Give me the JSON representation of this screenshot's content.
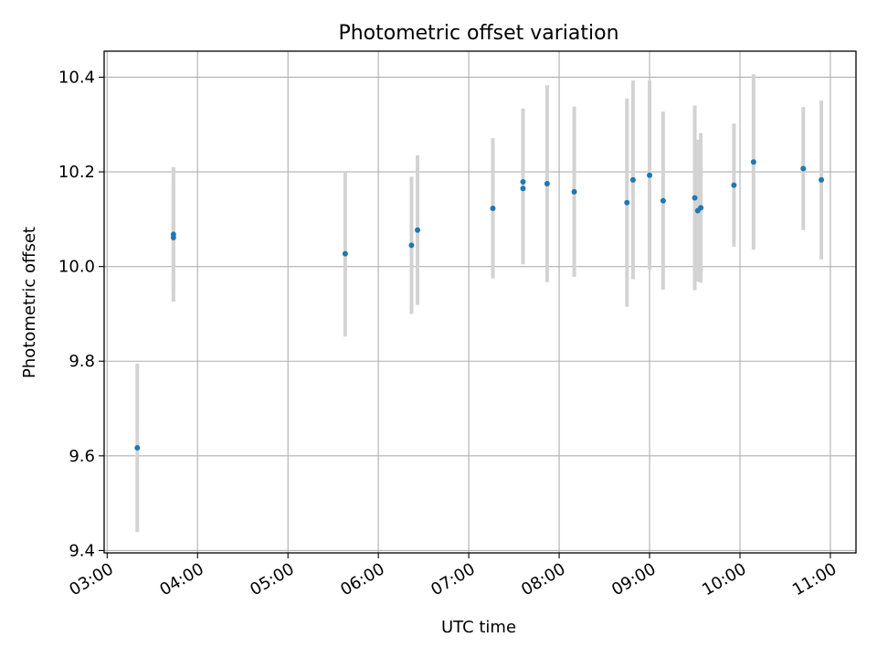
{
  "chart_data": {
    "type": "scatter",
    "title": "Photometric offset variation",
    "xlabel": "UTC time",
    "ylabel": "Photometric offset",
    "xlim": [
      "02:58",
      "11:17"
    ],
    "ylim": [
      9.395,
      10.455
    ],
    "x_ticks": [
      "03:00",
      "04:00",
      "05:00",
      "06:00",
      "07:00",
      "08:00",
      "09:00",
      "10:00",
      "11:00"
    ],
    "y_ticks": [
      9.4,
      9.6,
      9.8,
      10.0,
      10.2,
      10.4
    ],
    "y_tick_labels": [
      "9.4",
      "9.6",
      "9.8",
      "10.0",
      "10.2",
      "10.4"
    ],
    "grid": true,
    "colors": {
      "point": "#1f77b4",
      "errorbar": "#d3d3d3",
      "grid": "#b0b0b0"
    },
    "points": [
      {
        "x": "03:20",
        "y": 9.617,
        "err": 0.178
      },
      {
        "x": "03:44",
        "y": 10.068,
        "err": 0.142
      },
      {
        "x": "03:44",
        "y": 10.061,
        "err": 0.115
      },
      {
        "x": "05:38",
        "y": 10.027,
        "err": 0.175
      },
      {
        "x": "06:22",
        "y": 10.045,
        "err": 0.145
      },
      {
        "x": "06:26",
        "y": 10.077,
        "err": 0.158
      },
      {
        "x": "07:16",
        "y": 10.123,
        "err": 0.148
      },
      {
        "x": "07:36",
        "y": 10.179,
        "err": 0.155
      },
      {
        "x": "07:36",
        "y": 10.165,
        "err": 0.16
      },
      {
        "x": "07:52",
        "y": 10.175,
        "err": 0.208
      },
      {
        "x": "08:10",
        "y": 10.158,
        "err": 0.18
      },
      {
        "x": "08:45",
        "y": 10.135,
        "err": 0.22
      },
      {
        "x": "08:49",
        "y": 10.183,
        "err": 0.21
      },
      {
        "x": "09:00",
        "y": 10.193,
        "err": 0.2
      },
      {
        "x": "09:09",
        "y": 10.139,
        "err": 0.188
      },
      {
        "x": "09:30",
        "y": 10.145,
        "err": 0.195
      },
      {
        "x": "09:32",
        "y": 10.118,
        "err": 0.15
      },
      {
        "x": "09:34",
        "y": 10.124,
        "err": 0.158
      },
      {
        "x": "09:56",
        "y": 10.172,
        "err": 0.13
      },
      {
        "x": "10:09",
        "y": 10.221,
        "err": 0.185
      },
      {
        "x": "10:42",
        "y": 10.207,
        "err": 0.13
      },
      {
        "x": "10:54",
        "y": 10.183,
        "err": 0.168
      }
    ]
  }
}
